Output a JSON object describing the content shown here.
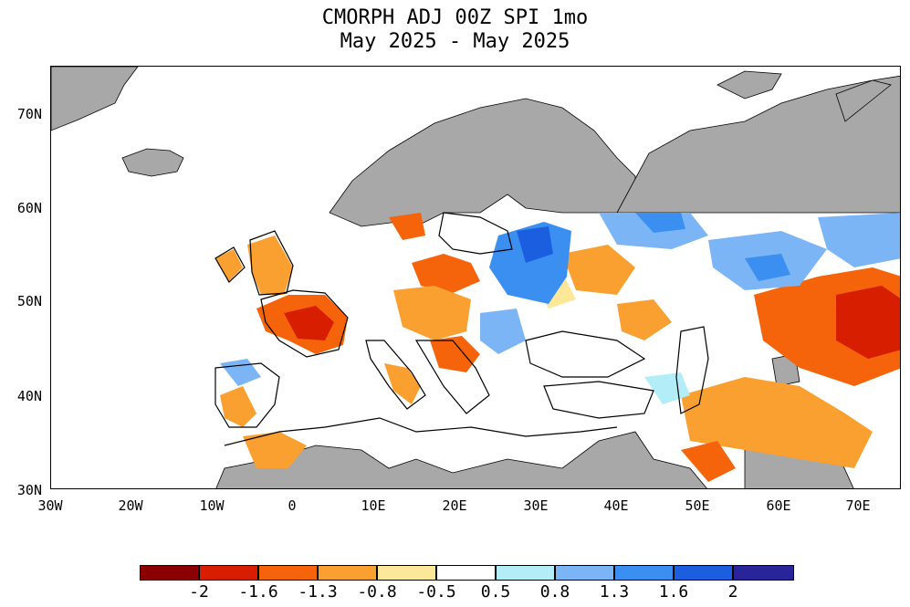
{
  "header": {
    "title_line1": "CMORPH ADJ 00Z SPI 1mo",
    "title_line2": "May 2025 - May 2025"
  },
  "map": {
    "lat_ticks": [
      "30N",
      "40N",
      "50N",
      "60N",
      "70N"
    ],
    "lon_ticks": [
      "30W",
      "20W",
      "10W",
      "0",
      "10E",
      "20E",
      "30E",
      "40E",
      "50E",
      "60E",
      "70E"
    ],
    "no_data_color": "#a8a8a8",
    "coastline_color": "#000000"
  },
  "colorbar": {
    "colors": [
      "#8b0000",
      "#d71e00",
      "#f5640a",
      "#f9a030",
      "#fde89a",
      "#ffffff",
      "#b3eef8",
      "#7cb5f5",
      "#3a8ff0",
      "#1c5ee0",
      "#2a249b"
    ],
    "labels": [
      "-2",
      "-1.6",
      "-1.3",
      "-0.8",
      "-0.5",
      "0.5",
      "0.8",
      "1.3",
      "1.6",
      "2"
    ]
  }
}
